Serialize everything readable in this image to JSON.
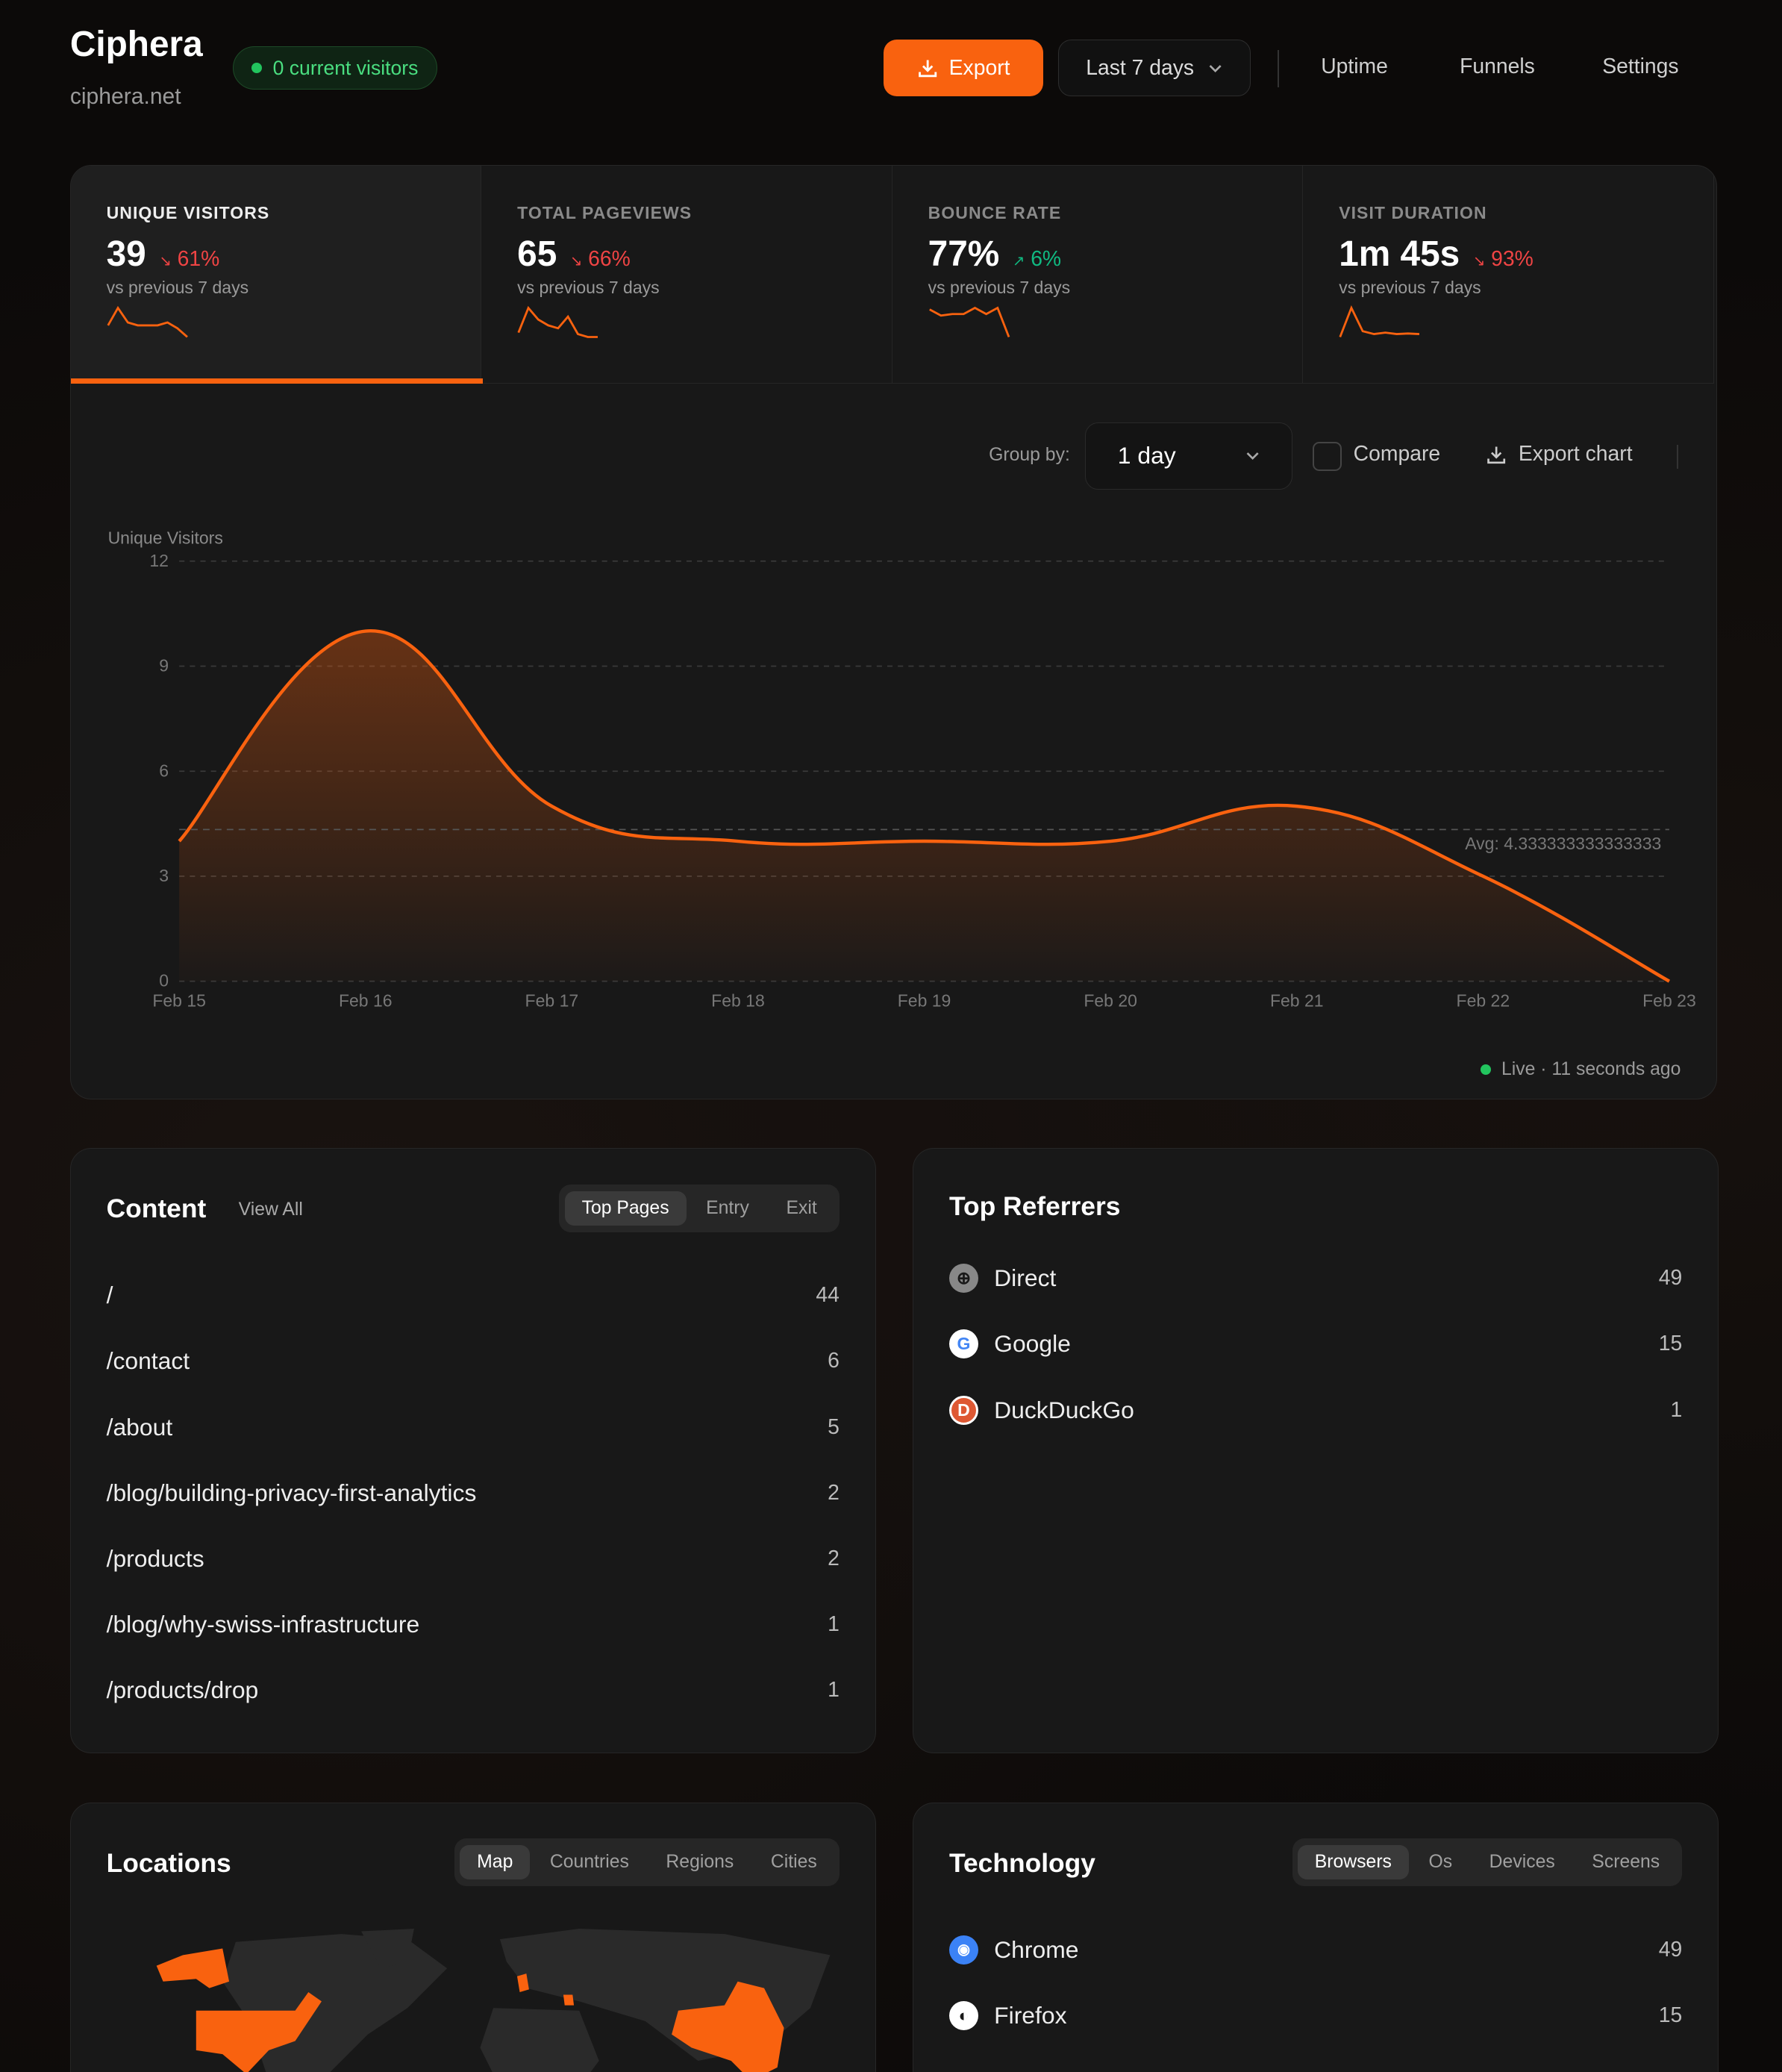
{
  "header": {
    "title": "Ciphera",
    "domain": "ciphera.net",
    "visitors_badge": "0 current visitors",
    "export_label": "Export",
    "range": "Last 7 days",
    "nav": [
      "Uptime",
      "Funnels",
      "Settings"
    ]
  },
  "colors": {
    "accent": "#f9620f",
    "up": "#10b981",
    "down": "#ef4444",
    "live": "#22c55e"
  },
  "stats": [
    {
      "label": "UNIQUE VISITORS",
      "value": "39",
      "change": "61%",
      "direction": "down",
      "sub": "vs previous 7 days",
      "active": true,
      "spark": [
        4,
        10,
        5,
        4,
        4,
        4,
        5,
        3,
        0
      ]
    },
    {
      "label": "TOTAL PAGEVIEWS",
      "value": "65",
      "change": "66%",
      "direction": "down",
      "sub": "vs previous 7 days",
      "active": false,
      "spark": [
        3,
        20,
        12,
        8,
        6,
        14,
        2,
        0,
        0
      ]
    },
    {
      "label": "BOUNCE RATE",
      "value": "77%",
      "change": "6%",
      "direction": "up",
      "sub": "vs previous 7 days",
      "active": false,
      "spark": [
        90,
        70,
        75,
        75,
        95,
        75,
        95,
        0
      ]
    },
    {
      "label": "VISIT DURATION",
      "value": "1m 45s",
      "change": "93%",
      "direction": "down",
      "sub": "vs previous 7 days",
      "active": false,
      "spark": [
        0,
        100,
        20,
        10,
        15,
        10,
        12,
        10
      ]
    }
  ],
  "chart_controls": {
    "group_by_label": "Group by:",
    "group_by_value": "1 day",
    "compare_label": "Compare",
    "compare_checked": false,
    "export_chart_label": "Export chart"
  },
  "chart_data": {
    "type": "area",
    "ylabel": "Unique Visitors",
    "x": [
      "Feb 15",
      "Feb 16",
      "Feb 17",
      "Feb 18",
      "Feb 19",
      "Feb 20",
      "Feb 21",
      "Feb 22",
      "Feb 23"
    ],
    "values": [
      4,
      10,
      5,
      4,
      4,
      4,
      5,
      3,
      0
    ],
    "ylim": [
      0,
      12
    ],
    "yticks": [
      0,
      3,
      6,
      9,
      12
    ],
    "grid": true,
    "average": 4.333333333333333,
    "avg_label": "Avg: 4.333333333333333"
  },
  "live_status": "Live · 11 seconds ago",
  "content": {
    "title": "Content",
    "view_all": "View All",
    "tabs": [
      "Top Pages",
      "Entry",
      "Exit"
    ],
    "active_tab": "Top Pages",
    "rows": [
      {
        "path": "/",
        "count": "44"
      },
      {
        "path": "/contact",
        "count": "6"
      },
      {
        "path": "/about",
        "count": "5"
      },
      {
        "path": "/blog/building-privacy-first-analytics",
        "count": "2"
      },
      {
        "path": "/products",
        "count": "2"
      },
      {
        "path": "/blog/why-swiss-infrastructure",
        "count": "1"
      },
      {
        "path": "/products/drop",
        "count": "1"
      }
    ]
  },
  "referrers": {
    "title": "Top Referrers",
    "rows": [
      {
        "name": "Direct",
        "count": "49",
        "icon": "globe-icon"
      },
      {
        "name": "Google",
        "count": "15",
        "icon": "google-icon"
      },
      {
        "name": "DuckDuckGo",
        "count": "1",
        "icon": "duckduckgo-icon"
      }
    ]
  },
  "locations": {
    "title": "Locations",
    "tabs": [
      "Map",
      "Countries",
      "Regions",
      "Cities"
    ],
    "active_tab": "Map"
  },
  "technology": {
    "title": "Technology",
    "tabs": [
      "Browsers",
      "Os",
      "Devices",
      "Screens"
    ],
    "active_tab": "Browsers",
    "rows": [
      {
        "name": "Chrome",
        "count": "49",
        "icon": "chrome-icon"
      },
      {
        "name": "Firefox",
        "count": "15",
        "icon": "firefox-icon"
      }
    ]
  }
}
